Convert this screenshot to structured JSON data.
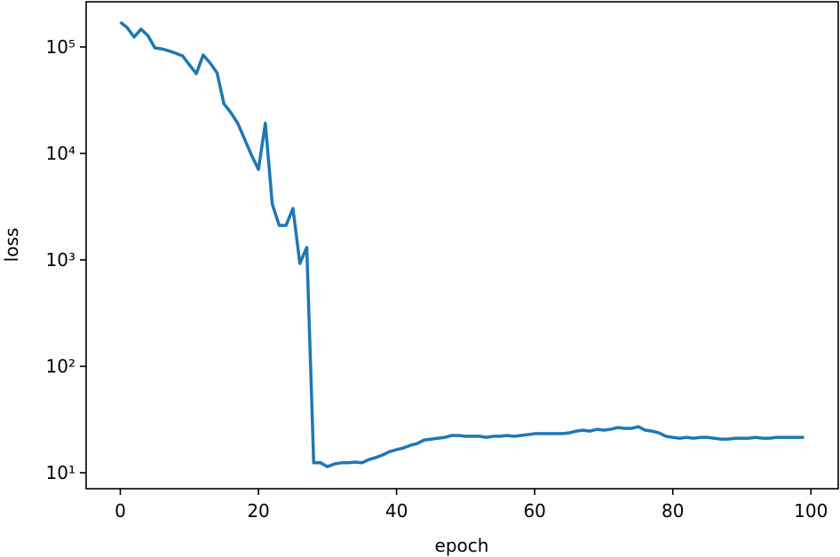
{
  "chart_data": {
    "type": "line",
    "xlabel": "epoch",
    "ylabel": "loss",
    "log_y": true,
    "color": "#1f77b4",
    "x": [
      0,
      1,
      2,
      3,
      4,
      5,
      6,
      7,
      8,
      9,
      10,
      11,
      12,
      13,
      14,
      15,
      16,
      17,
      18,
      19,
      20,
      21,
      22,
      23,
      24,
      25,
      26,
      27,
      28,
      29,
      30,
      31,
      32,
      33,
      34,
      35,
      36,
      37,
      38,
      39,
      40,
      41,
      42,
      43,
      44,
      45,
      46,
      47,
      48,
      49,
      50,
      51,
      52,
      53,
      54,
      55,
      56,
      57,
      58,
      59,
      60,
      61,
      62,
      63,
      64,
      65,
      66,
      67,
      68,
      69,
      70,
      71,
      72,
      73,
      74,
      75,
      76,
      77,
      78,
      79,
      80,
      81,
      82,
      83,
      84,
      85,
      86,
      87,
      88,
      89,
      90,
      91,
      92,
      93,
      94,
      95,
      96,
      97,
      98,
      99
    ],
    "values": [
      171000,
      152000,
      124000,
      147000,
      128000,
      98000,
      96000,
      92000,
      87500,
      82600,
      68100,
      56200,
      84100,
      70800,
      57300,
      29300,
      24200,
      19200,
      13600,
      9620,
      7080,
      19200,
      3350,
      2110,
      2110,
      3040,
      926,
      1310,
      12.4,
      12.4,
      11.4,
      12.1,
      12.4,
      12.4,
      12.6,
      12.4,
      13.3,
      13.9,
      14.7,
      15.8,
      16.5,
      17.1,
      18.1,
      18.8,
      20.3,
      20.7,
      21.1,
      21.5,
      22.4,
      22.4,
      22.0,
      22.0,
      22.0,
      21.5,
      22.0,
      22.0,
      22.4,
      22.0,
      22.4,
      22.8,
      23.3,
      23.3,
      23.3,
      23.3,
      23.3,
      23.7,
      24.6,
      25.1,
      24.6,
      25.6,
      25.1,
      25.6,
      26.6,
      26.1,
      26.1,
      27.1,
      25.1,
      24.6,
      23.7,
      22.0,
      21.5,
      21.1,
      21.5,
      21.1,
      21.5,
      21.5,
      21.1,
      20.7,
      20.7,
      21.1,
      21.1,
      21.1,
      21.5,
      21.1,
      21.1,
      21.5,
      21.5,
      21.5,
      21.5,
      21.5
    ],
    "xlim": [
      -4.95,
      103.95
    ],
    "xticks": [
      0,
      20,
      40,
      60,
      80,
      100
    ],
    "ylim": [
      7.08,
      266000
    ],
    "yticks": [
      {
        "value": 10,
        "label": "10¹"
      },
      {
        "value": 100,
        "label": "10²"
      },
      {
        "value": 1000,
        "label": "10³"
      },
      {
        "value": 10000,
        "label": "10⁴"
      },
      {
        "value": 100000,
        "label": "10⁵"
      }
    ]
  }
}
